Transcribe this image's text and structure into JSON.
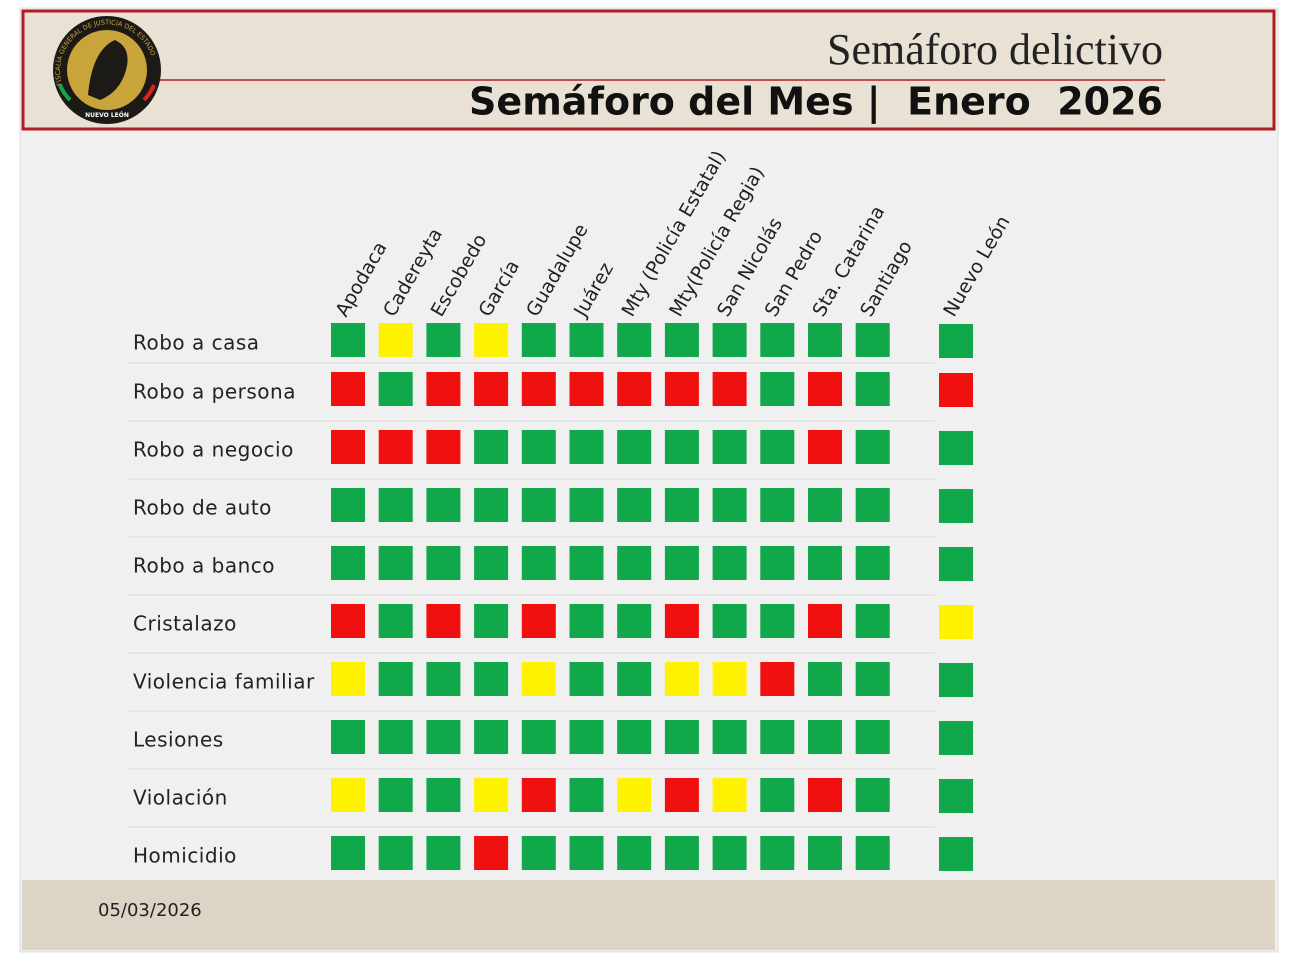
{
  "header": {
    "title": "Semáforo delictivo",
    "subtitle": "Semáforo del Mes |  Enero  2026",
    "logo": {
      "ring_text": "FISCALÍA GENERAL DE JUSTICIA DEL ESTADO",
      "bottom_text": "NUEVO LEÓN"
    }
  },
  "table": {
    "columns": [
      "Apodaca",
      "Cadereyta",
      "Escobedo",
      "García",
      "Guadalupe",
      "Juárez",
      "Mty (Policía Estatal)",
      "Mty(Policía Regia)",
      "San Nicolás",
      "San Pedro",
      "Sta. Catarina",
      "Santiago"
    ],
    "total_column": "Nuevo León",
    "rows": [
      {
        "label": "Robo a casa",
        "cells": [
          "#10a84a",
          "#fff200",
          "#10a84a",
          "#fff200",
          "#10a84a",
          "#10a84a",
          "#10a84a",
          "#10a84a",
          "#10a84a",
          "#10a84a",
          "#10a84a",
          "#10a84a"
        ],
        "total": "#10a84a"
      },
      {
        "label": "Robo a persona",
        "cells": [
          "#f01010",
          "#10a84a",
          "#f01010",
          "#f01010",
          "#f01010",
          "#f01010",
          "#f01010",
          "#f01010",
          "#f01010",
          "#10a84a",
          "#f01010",
          "#10a84a"
        ],
        "total": "#f01010"
      },
      {
        "label": "Robo a negocio",
        "cells": [
          "#f01010",
          "#f01010",
          "#f01010",
          "#10a84a",
          "#10a84a",
          "#10a84a",
          "#10a84a",
          "#10a84a",
          "#10a84a",
          "#10a84a",
          "#f01010",
          "#10a84a"
        ],
        "total": "#10a84a"
      },
      {
        "label": "Robo de auto",
        "cells": [
          "#10a84a",
          "#10a84a",
          "#10a84a",
          "#10a84a",
          "#10a84a",
          "#10a84a",
          "#10a84a",
          "#10a84a",
          "#10a84a",
          "#10a84a",
          "#10a84a",
          "#10a84a"
        ],
        "total": "#10a84a"
      },
      {
        "label": "Robo a banco",
        "cells": [
          "#10a84a",
          "#10a84a",
          "#10a84a",
          "#10a84a",
          "#10a84a",
          "#10a84a",
          "#10a84a",
          "#10a84a",
          "#10a84a",
          "#10a84a",
          "#10a84a",
          "#10a84a"
        ],
        "total": "#10a84a"
      },
      {
        "label": "Cristalazo",
        "cells": [
          "#f01010",
          "#10a84a",
          "#f01010",
          "#10a84a",
          "#f01010",
          "#10a84a",
          "#10a84a",
          "#f01010",
          "#10a84a",
          "#10a84a",
          "#f01010",
          "#10a84a"
        ],
        "total": "#fff200"
      },
      {
        "label": "Violencia familiar",
        "cells": [
          "#fff200",
          "#10a84a",
          "#10a84a",
          "#10a84a",
          "#fff200",
          "#10a84a",
          "#10a84a",
          "#fff200",
          "#fff200",
          "#f01010",
          "#10a84a",
          "#10a84a"
        ],
        "total": "#10a84a"
      },
      {
        "label": "Lesiones",
        "cells": [
          "#10a84a",
          "#10a84a",
          "#10a84a",
          "#10a84a",
          "#10a84a",
          "#10a84a",
          "#10a84a",
          "#10a84a",
          "#10a84a",
          "#10a84a",
          "#10a84a",
          "#10a84a"
        ],
        "total": "#10a84a"
      },
      {
        "label": "Violación",
        "cells": [
          "#fff200",
          "#10a84a",
          "#10a84a",
          "#fff200",
          "#f01010",
          "#10a84a",
          "#fff200",
          "#f01010",
          "#fff200",
          "#10a84a",
          "#f01010",
          "#10a84a"
        ],
        "total": "#10a84a"
      },
      {
        "label": "Homicidio",
        "cells": [
          "#10a84a",
          "#10a84a",
          "#10a84a",
          "#f01010",
          "#10a84a",
          "#10a84a",
          "#10a84a",
          "#10a84a",
          "#10a84a",
          "#10a84a",
          "#10a84a",
          "#10a84a"
        ],
        "total": "#10a84a"
      }
    ]
  },
  "footer": {
    "date": "05/03/2026"
  }
}
